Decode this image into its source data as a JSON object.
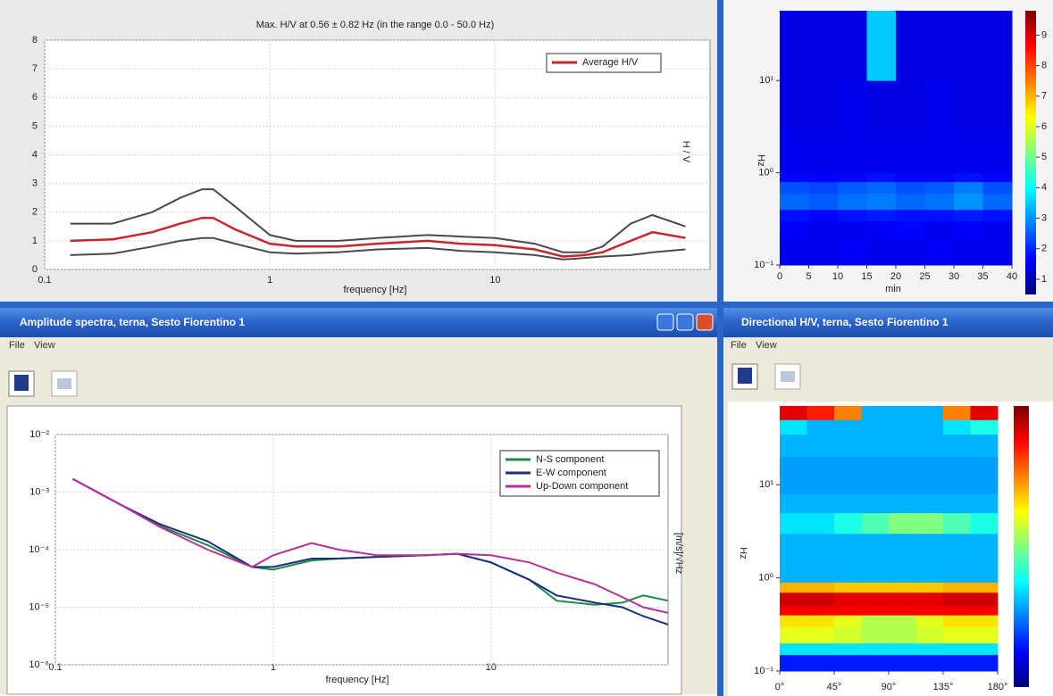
{
  "windows": [
    {
      "title": "Amplitude spectra, terna, Sesto Fiorentino 1",
      "menu": [
        "File",
        "View"
      ]
    },
    {
      "title": "Directional H/V, terna, Sesto Fiorentino 1",
      "menu": [
        "File",
        "View"
      ]
    }
  ],
  "chart_data": [
    {
      "type": "line",
      "title": "Max. H/V at 0.56 ± 0.82 Hz (in the range 0.0 - 50.0 Hz)",
      "x_label": "frequency [Hz]",
      "y_label": "H / V",
      "x": [
        0.13,
        0.2,
        0.3,
        0.4,
        0.5,
        0.56,
        0.7,
        1,
        1.3,
        2,
        3,
        5,
        7,
        10,
        15,
        20,
        25,
        30,
        40,
        50,
        70
      ],
      "series": [
        {
          "name": "Average H/V",
          "color": "#c8262c",
          "values": [
            1.0,
            1.05,
            1.3,
            1.6,
            1.8,
            1.8,
            1.4,
            0.9,
            0.8,
            0.8,
            0.9,
            1.0,
            0.9,
            0.85,
            0.7,
            0.45,
            0.5,
            0.6,
            1.0,
            1.3,
            1.1
          ]
        },
        {
          "color": "#4a4a4a",
          "values": [
            1.6,
            1.6,
            2.0,
            2.5,
            2.8,
            2.8,
            2.2,
            1.2,
            1.0,
            1.0,
            1.1,
            1.2,
            1.15,
            1.1,
            0.9,
            0.6,
            0.6,
            0.8,
            1.6,
            1.9,
            1.5
          ]
        },
        {
          "color": "#4a4a4a",
          "values": [
            0.5,
            0.55,
            0.8,
            1.0,
            1.1,
            1.1,
            0.9,
            0.6,
            0.55,
            0.6,
            0.7,
            0.75,
            0.65,
            0.6,
            0.5,
            0.35,
            0.4,
            0.45,
            0.5,
            0.6,
            0.7
          ]
        }
      ],
      "xscale": "log",
      "xlim": [
        0.1,
        90
      ],
      "xticks": [
        0.1,
        1,
        10
      ],
      "ylim": [
        0,
        8
      ],
      "yticks": [
        0,
        1,
        2,
        3,
        4,
        5,
        6,
        7,
        8
      ],
      "grid": true,
      "legend": "upper right"
    },
    {
      "type": "heatmap",
      "x_label": "min",
      "y_label": "Hz",
      "colormap": "jet",
      "xbins": [
        0,
        5,
        10,
        15,
        20,
        25,
        30,
        35,
        40
      ],
      "ybins": [
        0.1,
        0.2,
        0.3,
        0.4,
        0.6,
        0.8,
        1,
        3,
        10,
        57
      ],
      "z": [
        [
          1.5,
          1.5,
          1.6,
          1.5,
          1.5,
          1.6,
          1.5,
          1.5
        ],
        [
          1.6,
          1.5,
          1.5,
          1.6,
          1.7,
          1.5,
          1.6,
          1.5
        ],
        [
          1.8,
          1.7,
          1.8,
          1.9,
          1.8,
          1.8,
          1.9,
          1.8
        ],
        [
          2.6,
          2.5,
          2.7,
          2.8,
          2.6,
          2.7,
          3.0,
          2.6
        ],
        [
          2.4,
          2.3,
          2.5,
          2.6,
          2.4,
          2.5,
          2.8,
          2.4
        ],
        [
          1.7,
          1.6,
          1.7,
          1.8,
          1.7,
          1.7,
          1.8,
          1.7
        ],
        [
          1.5,
          1.5,
          1.5,
          1.5,
          1.5,
          1.5,
          1.5,
          1.5
        ],
        [
          1.4,
          1.4,
          1.5,
          1.4,
          1.4,
          1.5,
          1.4,
          1.4
        ],
        [
          1.4,
          1.4,
          1.4,
          3.5,
          1.4,
          1.4,
          1.4,
          1.4
        ]
      ],
      "zlim": [
        0.5,
        9.8
      ],
      "colorbar_ticks": [
        1,
        2,
        3,
        4,
        5,
        6,
        7,
        8,
        9
      ],
      "xlim": [
        0,
        40
      ],
      "xticks": [
        0,
        5,
        10,
        15,
        20,
        25,
        30,
        35,
        40
      ],
      "yscale": "log",
      "ylim": [
        0.1,
        57
      ],
      "yticks": [
        {
          "value": 0.1,
          "label": "10⁻¹"
        },
        {
          "value": 1,
          "label": "10⁰"
        },
        {
          "value": 10,
          "label": "10¹"
        }
      ]
    },
    {
      "type": "line",
      "x_label": "frequency [Hz]",
      "y_label": "[m/s]/√Hz",
      "x": [
        0.12,
        0.2,
        0.3,
        0.5,
        0.8,
        1,
        1.5,
        2,
        3,
        5,
        7,
        10,
        15,
        20,
        30,
        40,
        50,
        65
      ],
      "series": [
        {
          "name": "N-S component",
          "color": "#1f8a4c",
          "values": [
            0.0017,
            0.0006,
            0.00026,
            0.00012,
            5e-05,
            4.5e-05,
            6.5e-05,
            7e-05,
            7.5e-05,
            8e-05,
            8.5e-05,
            6e-05,
            3e-05,
            1.3e-05,
            1.1e-05,
            1.2e-05,
            1.6e-05,
            1.3e-05
          ]
        },
        {
          "name": "E-W component",
          "color": "#1c2f7a",
          "values": [
            0.0017,
            0.0006,
            0.00028,
            0.00014,
            5e-05,
            5e-05,
            7e-05,
            7e-05,
            7.5e-05,
            8e-05,
            8.5e-05,
            6e-05,
            3e-05,
            1.6e-05,
            1.2e-05,
            1e-05,
            7e-06,
            5e-06
          ]
        },
        {
          "name": "Up-Down component",
          "color": "#b8309a",
          "values": [
            0.0017,
            0.0006,
            0.00025,
            0.0001,
            5e-05,
            8e-05,
            0.00013,
            0.0001,
            8e-05,
            8e-05,
            8.5e-05,
            8e-05,
            6e-05,
            4e-05,
            2.5e-05,
            1.5e-05,
            1e-05,
            8e-06
          ]
        }
      ],
      "xscale": "log",
      "xlim": [
        0.1,
        65
      ],
      "xticks": [
        0.1,
        1,
        10
      ],
      "yscale": "log",
      "ylim": [
        1e-06,
        0.01
      ],
      "yticks": [
        {
          "value": 1e-06,
          "label": "10⁻⁶"
        },
        {
          "value": 1e-05,
          "label": "10⁻⁵"
        },
        {
          "value": 0.0001,
          "label": "10⁻⁴"
        },
        {
          "value": 0.001,
          "label": "10⁻³"
        },
        {
          "value": 0.01,
          "label": "10⁻²"
        }
      ],
      "grid": true,
      "legend": "upper right"
    },
    {
      "type": "heatmap",
      "y_label": "Hz",
      "colormap": "jet",
      "xbins": [
        0,
        22.5,
        45,
        67.5,
        90,
        112.5,
        135,
        157.5,
        180
      ],
      "ybins": [
        0.1,
        0.15,
        0.2,
        0.3,
        0.4,
        0.5,
        0.7,
        0.9,
        1.5,
        3,
        5,
        8,
        20,
        35,
        50,
        70
      ],
      "z": [
        [
          0.15,
          0.15,
          0.15,
          0.15,
          0.15,
          0.15,
          0.15,
          0.15
        ],
        [
          0.35,
          0.35,
          0.35,
          0.35,
          0.35,
          0.35,
          0.35,
          0.35
        ],
        [
          0.6,
          0.6,
          0.58,
          0.55,
          0.55,
          0.58,
          0.6,
          0.6
        ],
        [
          0.65,
          0.65,
          0.6,
          0.55,
          0.55,
          0.6,
          0.65,
          0.65
        ],
        [
          0.88,
          0.88,
          0.88,
          0.88,
          0.88,
          0.88,
          0.88,
          0.88
        ],
        [
          0.92,
          0.92,
          0.9,
          0.9,
          0.9,
          0.9,
          0.92,
          0.92
        ],
        [
          0.7,
          0.7,
          0.68,
          0.68,
          0.68,
          0.68,
          0.7,
          0.7
        ],
        [
          0.3,
          0.3,
          0.3,
          0.3,
          0.3,
          0.3,
          0.3,
          0.3
        ],
        [
          0.3,
          0.3,
          0.3,
          0.3,
          0.3,
          0.3,
          0.3,
          0.3
        ],
        [
          0.35,
          0.35,
          0.4,
          0.45,
          0.5,
          0.5,
          0.45,
          0.4
        ],
        [
          0.3,
          0.3,
          0.3,
          0.3,
          0.3,
          0.3,
          0.3,
          0.3
        ],
        [
          0.28,
          0.28,
          0.28,
          0.28,
          0.28,
          0.28,
          0.28,
          0.28
        ],
        [
          0.3,
          0.3,
          0.3,
          0.3,
          0.3,
          0.3,
          0.3,
          0.3
        ],
        [
          0.35,
          0.3,
          0.3,
          0.3,
          0.3,
          0.3,
          0.35,
          0.4
        ],
        [
          0.9,
          0.85,
          0.75,
          0.3,
          0.3,
          0.3,
          0.75,
          0.9
        ]
      ],
      "zlim": [
        0,
        1
      ],
      "xlim": [
        0,
        180
      ],
      "xticks": [
        {
          "value": 0,
          "label": "0°"
        },
        {
          "value": 45,
          "label": "45°"
        },
        {
          "value": 90,
          "label": "90°"
        },
        {
          "value": 135,
          "label": "135°"
        },
        {
          "value": 180,
          "label": "180°"
        }
      ],
      "yscale": "log",
      "ylim": [
        0.1,
        70
      ],
      "yticks": [
        {
          "value": 0.1,
          "label": "10⁻¹"
        },
        {
          "value": 1,
          "label": "10⁰"
        },
        {
          "value": 10,
          "label": "10¹"
        }
      ]
    }
  ]
}
